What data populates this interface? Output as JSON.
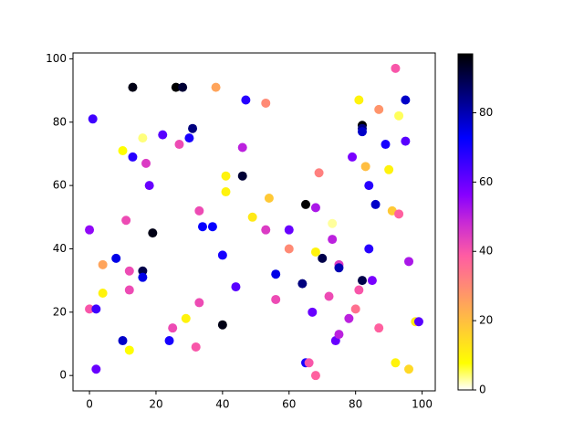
{
  "chart_data": {
    "type": "scatter",
    "x": [
      0,
      1,
      0,
      2,
      2,
      4,
      4,
      8,
      10,
      10,
      11,
      12,
      12,
      12,
      13,
      13,
      16,
      16,
      16,
      17,
      18,
      19,
      22,
      24,
      25,
      26,
      27,
      28,
      29,
      30,
      31,
      32,
      33,
      33,
      34,
      37,
      38,
      40,
      40,
      41,
      41,
      44,
      46,
      46,
      47,
      49,
      53,
      53,
      54,
      56,
      56,
      60,
      60,
      64,
      65,
      65,
      66,
      67,
      68,
      68,
      68,
      69,
      70,
      72,
      73,
      73,
      74,
      75,
      75,
      75,
      78,
      79,
      80,
      81,
      81,
      82,
      82,
      82,
      82,
      83,
      84,
      84,
      85,
      86,
      87,
      87,
      89,
      90,
      91,
      92,
      92,
      93,
      93,
      95,
      95,
      96,
      96,
      98,
      99
    ],
    "y": [
      46,
      81,
      21,
      21,
      2,
      35,
      26,
      37,
      71,
      11,
      49,
      33,
      27,
      8,
      91,
      69,
      75,
      33,
      31,
      67,
      60,
      45,
      76,
      11,
      15,
      91,
      73,
      91,
      18,
      75,
      78,
      9,
      52,
      23,
      47,
      47,
      91,
      38,
      16,
      63,
      58,
      28,
      72,
      63,
      87,
      50,
      86,
      46,
      56,
      32,
      24,
      46,
      40,
      29,
      54,
      4,
      4,
      20,
      53,
      39,
      0,
      64,
      37,
      25,
      48,
      43,
      11,
      13,
      35,
      34,
      18,
      69,
      21,
      27,
      87,
      79,
      78,
      77,
      30,
      66,
      60,
      40,
      30,
      54,
      84,
      15,
      73,
      65,
      52,
      97,
      4,
      82,
      51,
      87,
      74,
      2,
      36,
      17,
      17
    ],
    "c": [
      55,
      65,
      40,
      65,
      60,
      25,
      10,
      75,
      8,
      78,
      42,
      42,
      42,
      8,
      95,
      68,
      4,
      90,
      75,
      45,
      60,
      95,
      62,
      70,
      42,
      97,
      42,
      92,
      10,
      70,
      85,
      40,
      42,
      42,
      72,
      72,
      25,
      70,
      95,
      10,
      10,
      62,
      50,
      92,
      68,
      12,
      30,
      45,
      18,
      75,
      42,
      60,
      30,
      85,
      97,
      70,
      40,
      60,
      52,
      10,
      38,
      32,
      90,
      42,
      3,
      50,
      60,
      50,
      45,
      80,
      50,
      58,
      35,
      40,
      10,
      97,
      85,
      78,
      90,
      20,
      68,
      68,
      58,
      78,
      28,
      38,
      70,
      10,
      18,
      40,
      10,
      5,
      38,
      78,
      62,
      15,
      52,
      12,
      62
    ],
    "xlim": [
      -4.95,
      103.95
    ],
    "ylim": [
      -4.85,
      101.85
    ],
    "xticks": [
      0,
      20,
      40,
      60,
      80,
      100
    ],
    "yticks": [
      0,
      20,
      40,
      60,
      80,
      100
    ],
    "colorbar": {
      "lim": [
        0,
        97
      ],
      "ticks": [
        0,
        20,
        40,
        60,
        80
      ]
    },
    "colormap": [
      [
        0,
        "#ffffff"
      ],
      [
        0.08,
        "#ffff00"
      ],
      [
        0.25,
        "#ffa857"
      ],
      [
        0.4,
        "#ff5ca3"
      ],
      [
        0.5,
        "#c729d6"
      ],
      [
        0.58,
        "#8700ff"
      ],
      [
        0.75,
        "#0000ff"
      ],
      [
        1,
        "#000000"
      ]
    ]
  }
}
